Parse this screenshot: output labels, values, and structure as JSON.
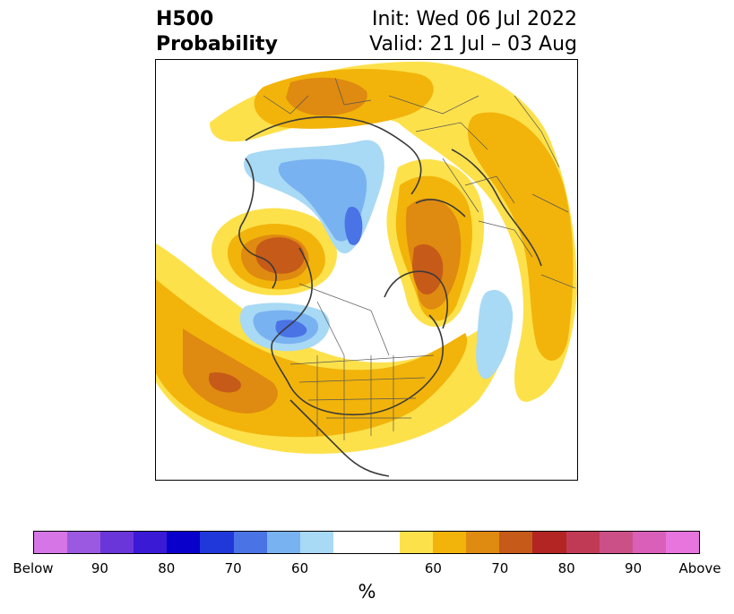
{
  "title": {
    "variable": "H500",
    "subtitle": "Probability",
    "init": "Init: Wed 06 Jul 2022",
    "valid": "Valid: 21 Jul – 03 Aug"
  },
  "map": {
    "projection": "north-polar-stereographic",
    "features": [
      "continents",
      "country borders",
      "us-state borders"
    ]
  },
  "colorbar": {
    "colors": [
      "#d575e6",
      "#9a59e0",
      "#6a35d9",
      "#3b1ad6",
      "#0a00cc",
      "#2038d9",
      "#4a73e6",
      "#79b2f0",
      "#a8d9f5",
      "#ffffff",
      "#ffffff",
      "#fde14b",
      "#f2b40a",
      "#df8a10",
      "#c65a18",
      "#b22522",
      "#c13a55",
      "#cc5088",
      "#da5fb8",
      "#e874dd"
    ],
    "tick_labels": [
      "Below",
      "90",
      "80",
      "70",
      "60",
      "60",
      "70",
      "80",
      "90",
      "Above"
    ],
    "unit": "%"
  }
}
